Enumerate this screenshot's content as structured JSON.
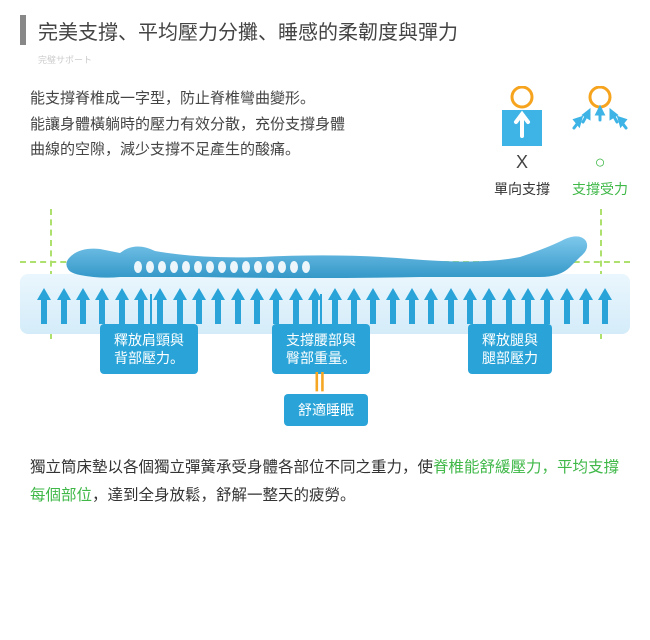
{
  "header": {
    "title": "完美支撐、平均壓力分攤、睡感的柔韌度與彈力",
    "subtitle": "完璧サポート"
  },
  "description": {
    "line1": "能支撐脊椎成一字型，防止脊椎彎曲變形。",
    "line2": "能讓身體橫躺時的壓力有效分散，充份支撐身體",
    "line3": "曲線的空隙，減少支撐不足產生的酸痛。"
  },
  "icons": {
    "left": {
      "mark": "X",
      "label": "單向支撐"
    },
    "right": {
      "mark": "○",
      "label": "支撐受力"
    }
  },
  "labels": {
    "shoulder": "釋放肩頸與\n背部壓力。",
    "waist": "支撐腰部與\n臀部重量。",
    "leg": "釋放腿與\n腿部壓力",
    "sleep": "舒適睡眠"
  },
  "bottom": {
    "part1": "獨立筒床墊以各個獨立彈簧承受身體各部位不同之重力，使",
    "green1": "脊椎能舒緩壓力，平均支撐每個部位",
    "part2": "，達到全身放鬆，舒解一整天的疲勞。"
  },
  "style": {
    "accent_blue": "#2aa4d8",
    "icon_blue": "#3eb4e6",
    "green": "#3fb848",
    "orange": "#f5a623",
    "mattress_arrows": 30,
    "circle_stroke": "#f6a31e"
  }
}
